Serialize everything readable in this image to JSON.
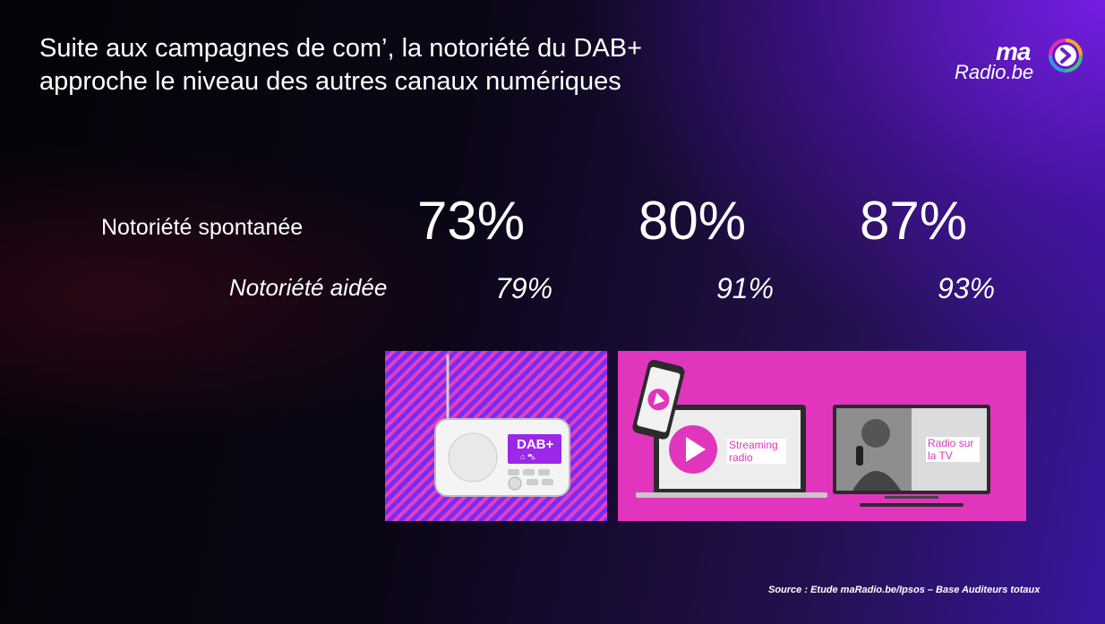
{
  "title": {
    "line1": "Suite aux campagnes de com’, la notoriété du DAB+",
    "line2": "approche le niveau des autres canaux numériques"
  },
  "logo": {
    "ma": "ma",
    "radio": "Radio.be"
  },
  "metrics": {
    "label_spontanee": "Notoriété spontanée",
    "label_aidee": "Notoriété aidée",
    "spontanee": [
      "73%",
      "80%",
      "87%"
    ],
    "aidee": [
      "79%",
      "91%",
      "93%"
    ]
  },
  "panels": {
    "dab_screen": "DAB+",
    "streaming_tag": "Streaming radio",
    "tv_tag": "Radio sur la TV"
  },
  "source": "Source : Etude maRadio.be/Ipsos – Base Auditeurs totaux",
  "colors": {
    "accent_pink": "#e135be",
    "accent_purple": "#7a2cf0",
    "dab_screen": "#9b28e6"
  }
}
